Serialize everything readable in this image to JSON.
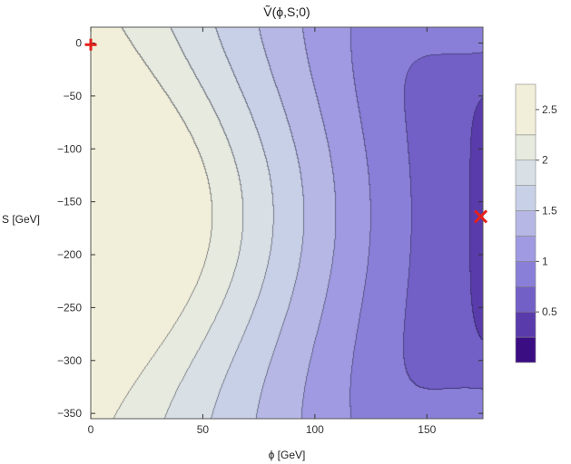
{
  "chart_data": {
    "type": "heatmap",
    "subtype": "filled-contour",
    "title": "Ṽ(ϕ,S;0)",
    "xlabel": "ϕ [GeV]",
    "ylabel": "S [GeV]",
    "xlim": [
      0,
      175
    ],
    "ylim": [
      -355,
      15
    ],
    "x_ticks": [
      0,
      50,
      100,
      150
    ],
    "y_ticks": [
      0,
      -50,
      -100,
      -150,
      -200,
      -250,
      -300,
      -350
    ],
    "x_tick_labels": [
      "0",
      "50",
      "100",
      "150"
    ],
    "y_tick_labels": [
      "0",
      "−50",
      "−100",
      "−150",
      "−200",
      "−250",
      "−300",
      "−350"
    ],
    "colorbar": {
      "range": [
        0,
        2.75
      ],
      "ticks": [
        0.5,
        1,
        1.5,
        2,
        2.5
      ],
      "tick_labels": [
        "0.5",
        "1",
        "1.5",
        "2",
        "2.5"
      ],
      "colors": [
        "#3b0d82",
        "#5a3bab",
        "#7260c6",
        "#8a7fd8",
        "#a09ae2",
        "#b6b7e5",
        "#c7d0e6",
        "#d8e0e6",
        "#e6eadf",
        "#f1efd9"
      ]
    },
    "levels": [
      0.25,
      0.5,
      0.75,
      1.0,
      1.25,
      1.5,
      1.75,
      2.0,
      2.25,
      2.5,
      2.75
    ],
    "markers": [
      {
        "symbol": "+",
        "x": 0,
        "y": -1.5,
        "color": "#e3211c"
      },
      {
        "symbol": "×",
        "x": 174,
        "y": -164,
        "color": "#e3211c"
      }
    ],
    "grid": false
  }
}
